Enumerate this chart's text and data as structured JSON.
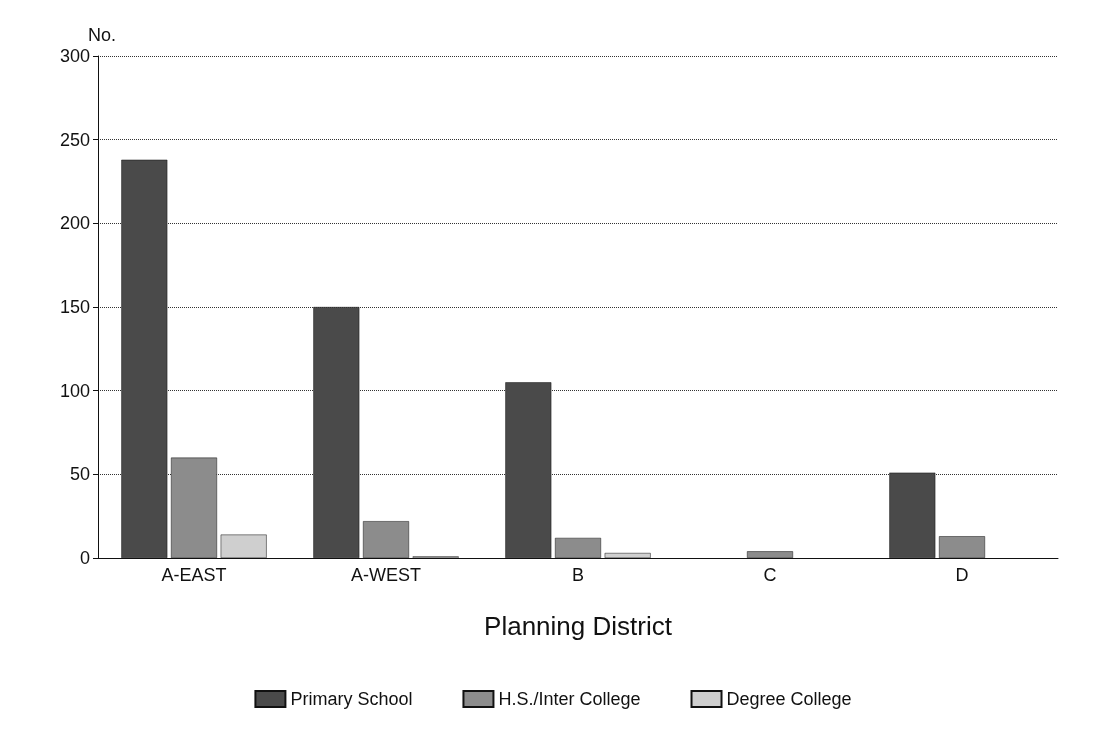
{
  "chart_data": {
    "type": "bar",
    "ylabel": "No.",
    "xlabel": "Planning District",
    "categories": [
      "A-EAST",
      "A-WEST",
      "B",
      "C",
      "D"
    ],
    "series": [
      {
        "name": "Primary School",
        "color": "#4a4a4a",
        "values": [
          238,
          150,
          105,
          0,
          51
        ]
      },
      {
        "name": "H.S./Inter College",
        "color": "#8c8c8c",
        "values": [
          60,
          22,
          12,
          4,
          13
        ]
      },
      {
        "name": "Degree College",
        "color": "#cfcfcf",
        "values": [
          14,
          1,
          3,
          0,
          0
        ]
      }
    ],
    "ylim": [
      0,
      300
    ],
    "yticks": [
      0,
      50,
      100,
      150,
      200,
      250,
      300
    ],
    "grid": "y",
    "legend": "bottom"
  }
}
